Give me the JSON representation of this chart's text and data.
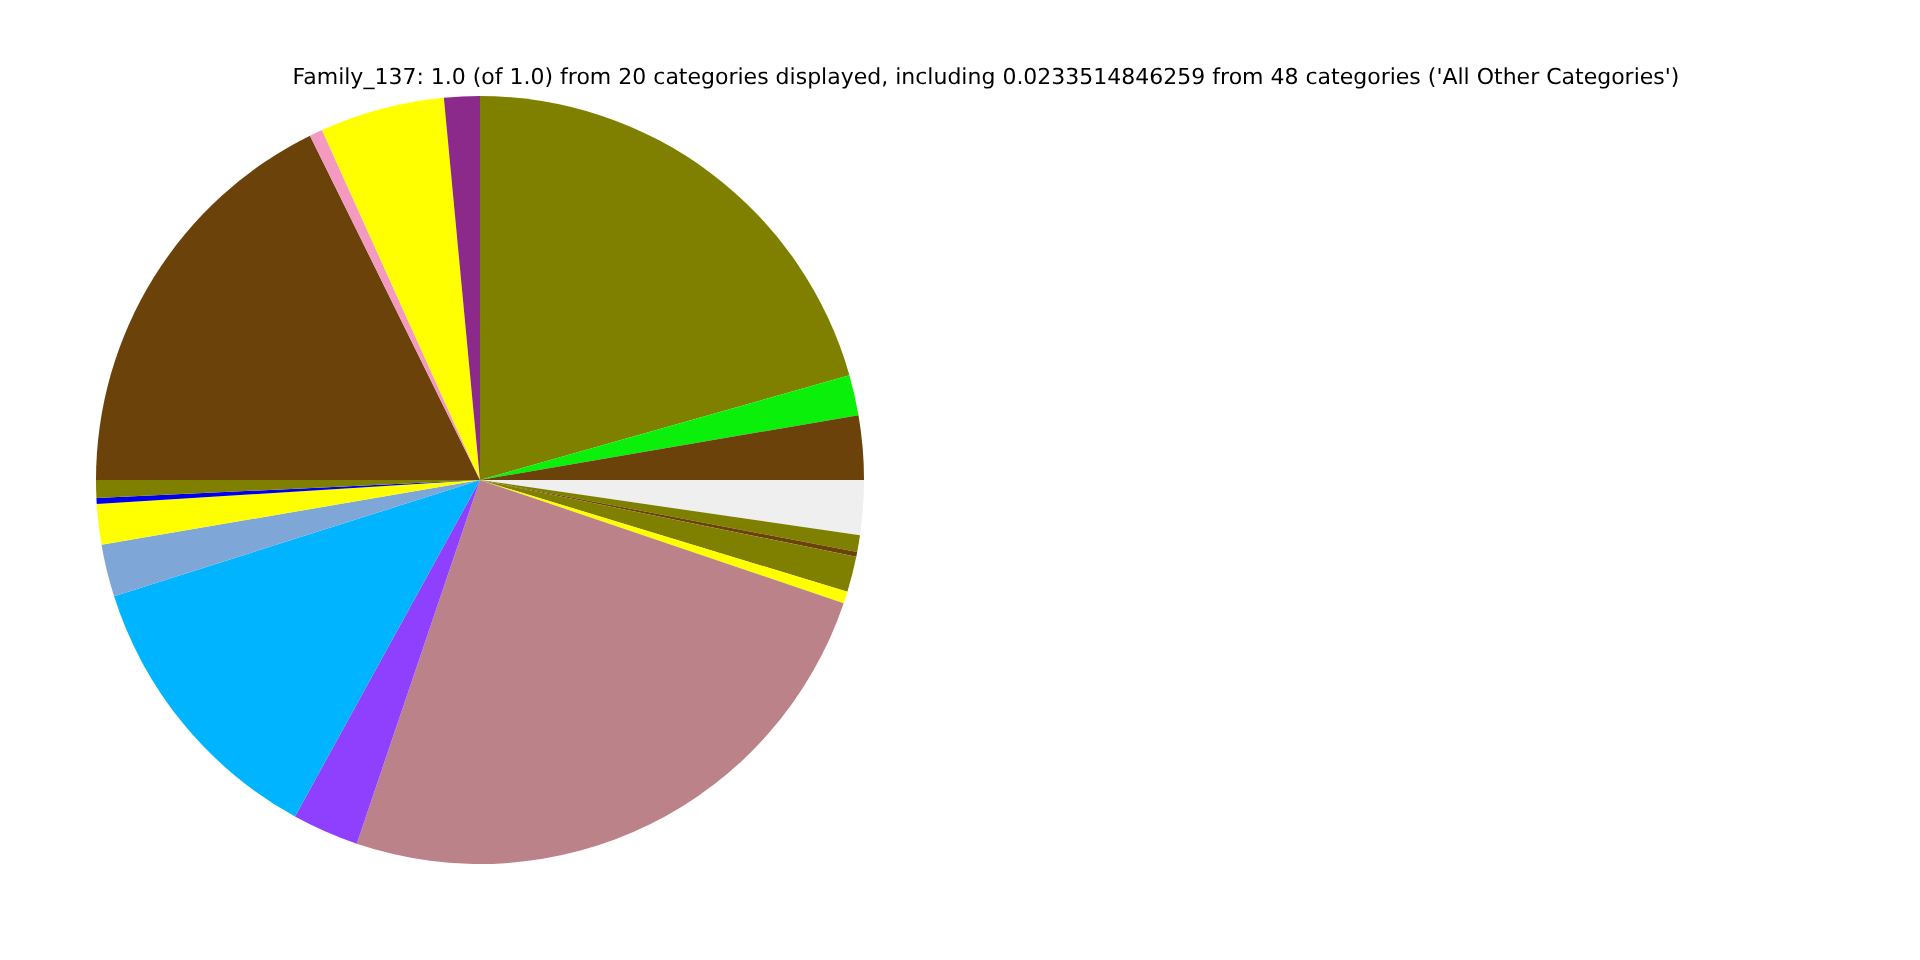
{
  "chart_data": {
    "type": "pie",
    "title": "Family_137: 1.0 (of 1.0) from 20 categories displayed, including 0.0233514846259 from 48 categories ('All Other Categories')",
    "categories": [
      null,
      null,
      null,
      null,
      null,
      null,
      null,
      null,
      null,
      null,
      null,
      null,
      null,
      null,
      null,
      null,
      null,
      null,
      null
    ],
    "values": [
      20.6,
      1.7,
      2.7,
      2.3,
      0.7,
      0.2,
      1.5,
      0.5,
      25.0,
      2.8,
      12.1,
      2.2,
      1.7,
      0.25,
      0.75,
      17.7,
      0.55,
      5.25,
      1.5
    ],
    "colors": [
      "#808000",
      "#0bf00b",
      "#6b4209",
      "#efefef",
      "#808000",
      "#6b4209",
      "#808000",
      "#ffff00",
      "#bc828a",
      "#8f40ff",
      "#00b4ff",
      "#7ea7d8",
      "#ffff00",
      "#0000ee",
      "#808000",
      "#6b4209",
      "#f49ac1",
      "#ffff00",
      "#8b2a8b"
    ],
    "legend": false
  }
}
